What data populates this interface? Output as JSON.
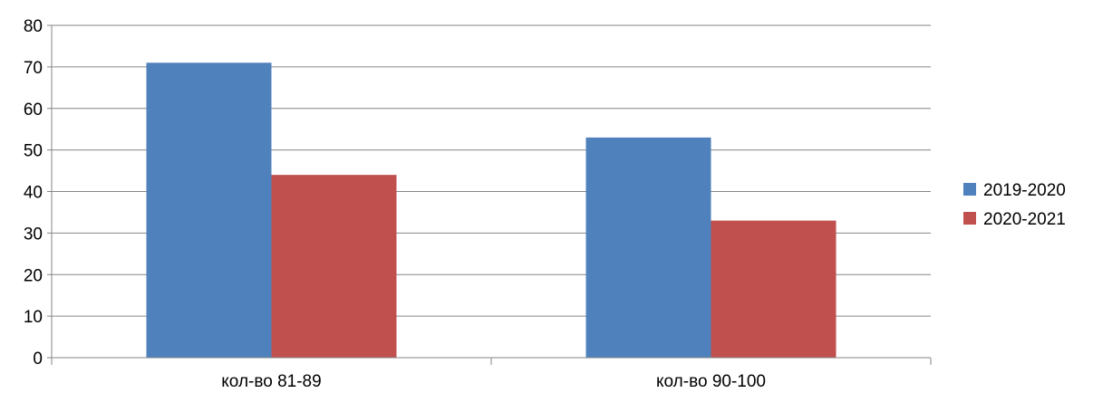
{
  "chart_data": {
    "type": "bar",
    "title": "",
    "xlabel": "",
    "ylabel": "",
    "categories": [
      "кол-во 81-89",
      "кол-во 90-100"
    ],
    "series": [
      {
        "name": "2019-2020",
        "values": [
          71,
          53
        ],
        "color": "#4F81BD"
      },
      {
        "name": "2020-2021",
        "values": [
          44,
          33
        ],
        "color": "#C0504D"
      }
    ],
    "ylim": [
      0,
      80
    ],
    "yticks": [
      "0",
      "10",
      "20",
      "30",
      "40",
      "50",
      "60",
      "70",
      "80"
    ],
    "grid": true,
    "legend_position": "right"
  }
}
